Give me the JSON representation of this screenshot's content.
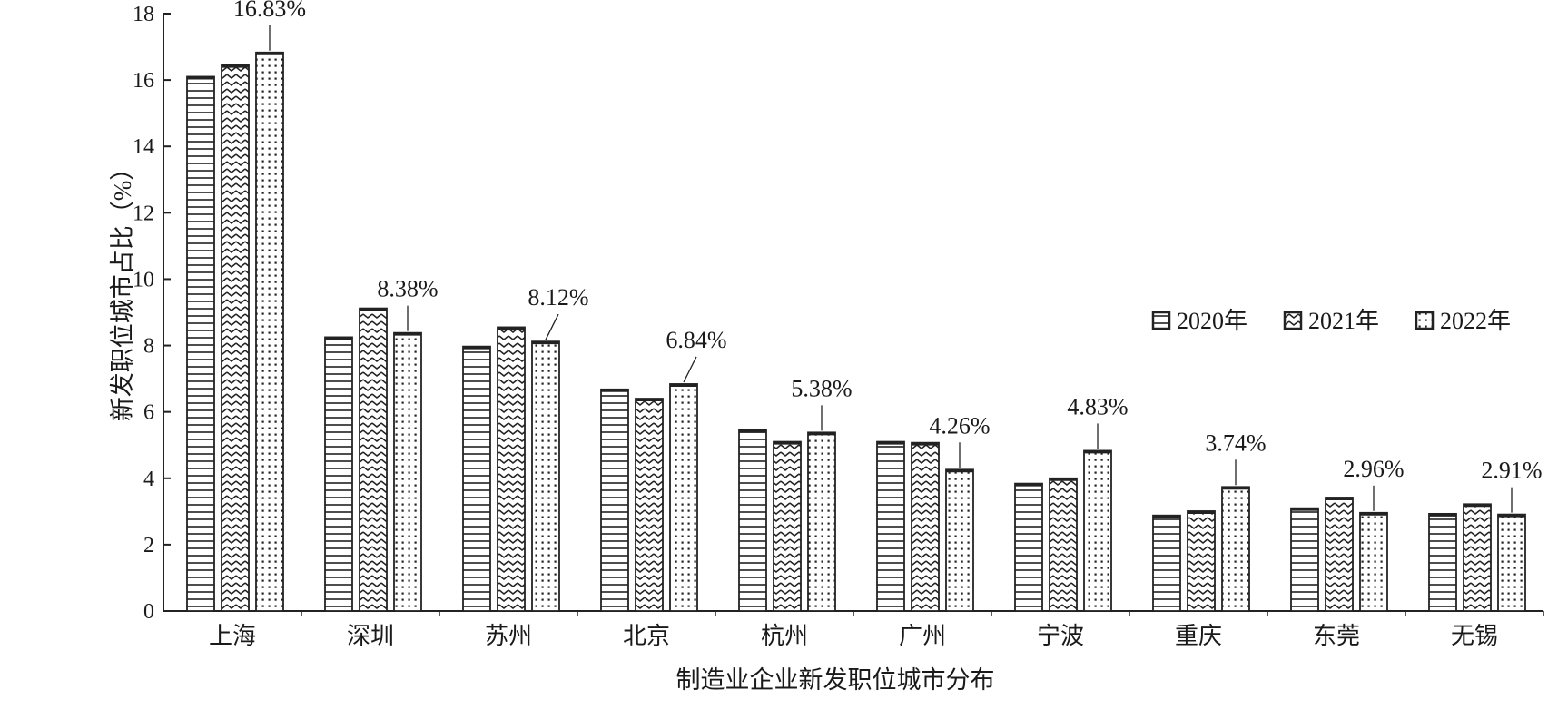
{
  "chart_data": {
    "type": "bar",
    "xlabel": "制造业企业新发职位城市分布",
    "ylabel": "新发职位城市占比（%）",
    "ylim": [
      0,
      18
    ],
    "yticks": [
      0,
      2,
      4,
      6,
      8,
      10,
      12,
      14,
      16,
      18
    ],
    "categories": [
      "上海",
      "深圳",
      "苏州",
      "北京",
      "杭州",
      "广州",
      "宁波",
      "重庆",
      "东莞",
      "无锡"
    ],
    "series": [
      {
        "name": "2020年",
        "pattern": "horizontal-lines",
        "values": [
          16.1,
          8.25,
          7.97,
          6.68,
          5.45,
          5.1,
          3.84,
          2.88,
          3.1,
          2.93
        ]
      },
      {
        "name": "2021年",
        "pattern": "zigzag",
        "values": [
          16.45,
          9.12,
          8.55,
          6.4,
          5.1,
          5.07,
          4.0,
          3.01,
          3.42,
          3.22
        ]
      },
      {
        "name": "2022年",
        "pattern": "dots",
        "values": [
          16.83,
          8.38,
          8.12,
          6.84,
          5.38,
          4.26,
          4.83,
          3.74,
          2.96,
          2.91
        ]
      }
    ],
    "annotations": [
      "16.83%",
      "8.38%",
      "8.12%",
      "6.84%",
      "5.38%",
      "4.26%",
      "4.83%",
      "3.74%",
      "2.96%",
      "2.91%"
    ],
    "legend_position": "right",
    "grid": false
  }
}
